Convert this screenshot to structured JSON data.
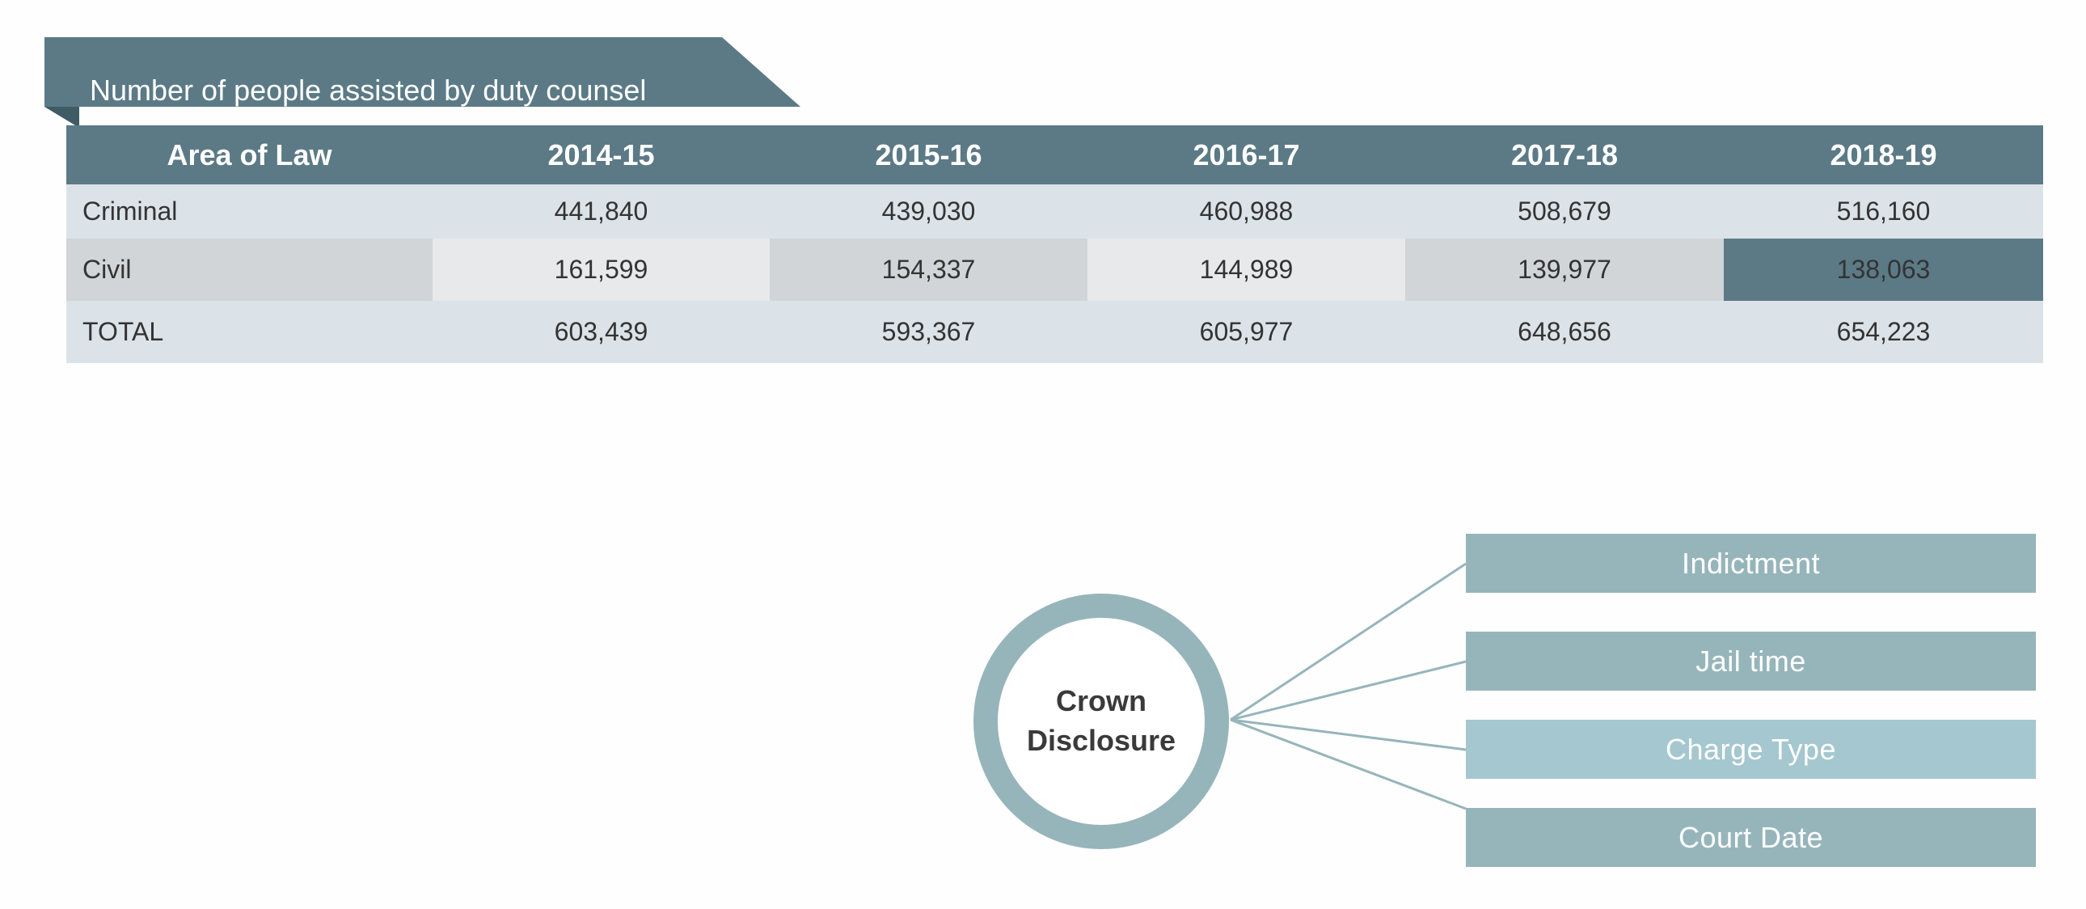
{
  "title": "Number of people assisted by duty counsel",
  "table": {
    "headers": [
      "Area of Law",
      "2014-15",
      "2015-16",
      "2016-17",
      "2017-18",
      "2018-19"
    ],
    "rows": [
      {
        "label": "Criminal",
        "values": [
          "441,840",
          "439,030",
          "460,988",
          "508,679",
          "516,160"
        ]
      },
      {
        "label": "Civil",
        "values": [
          "161,599",
          "154,337",
          "144,989",
          "139,977",
          "138,063"
        ]
      },
      {
        "label": "TOTAL",
        "values": [
          "603,439",
          "593,367",
          "605,977",
          "648,656",
          "654,223"
        ]
      }
    ]
  },
  "diagram": {
    "hub_label": "Crown\nDisclosure",
    "items": [
      {
        "label": "Indictment",
        "color": "#96b5bb"
      },
      {
        "label": "Jail time",
        "color": "#96b5bb"
      },
      {
        "label": "Charge Type",
        "color": "#a5c7cf"
      },
      {
        "label": "Court Date",
        "color": "#96b5bb"
      }
    ]
  },
  "colors": {
    "header": "#5b7a86",
    "row_light": "#dbe3e8",
    "hub_ring": "#96b5bb",
    "connector": "#96b5bb"
  }
}
